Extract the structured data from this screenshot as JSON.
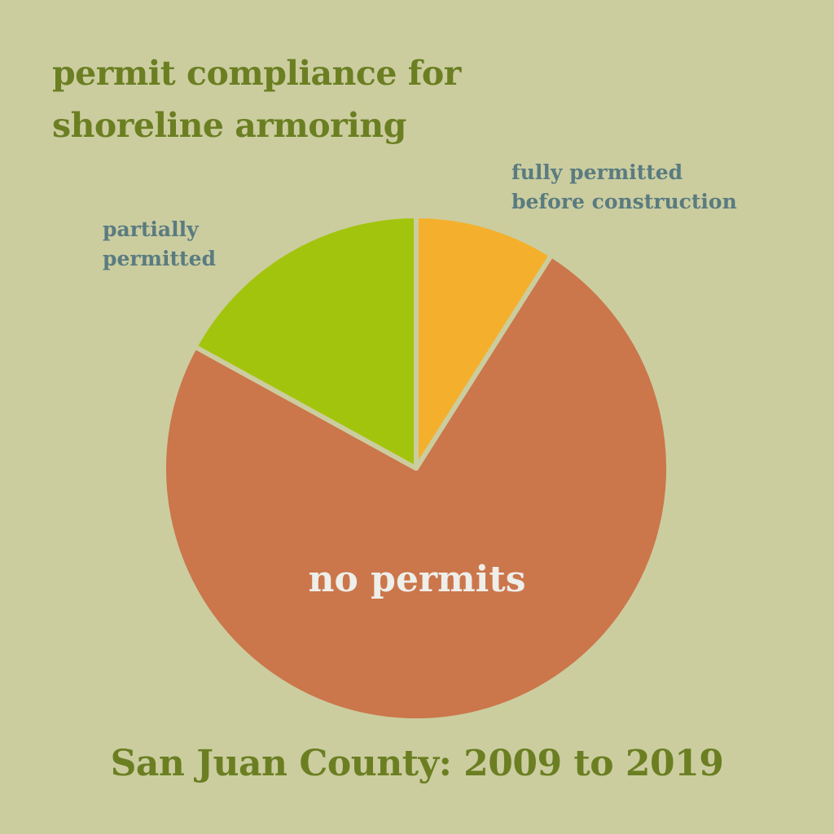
{
  "chart_data": {
    "type": "pie",
    "title": [
      "permit compliance for",
      "shoreline armoring"
    ],
    "subtitle": "San Juan County: 2009 to 2019",
    "slices": [
      {
        "label": "fully permitted before construction",
        "label_lines": [
          "fully permitted",
          "before construction"
        ],
        "value": 9,
        "color": "#f4b02c"
      },
      {
        "label": "no permits",
        "value": 74,
        "color": "#cb764b"
      },
      {
        "label": "partially permitted",
        "label_lines": [
          "partially",
          "permitted"
        ],
        "value": 17,
        "color": "#a3c40d"
      }
    ],
    "start_angle": "12 o'clock, clockwise",
    "background": "#cbcd9f"
  }
}
